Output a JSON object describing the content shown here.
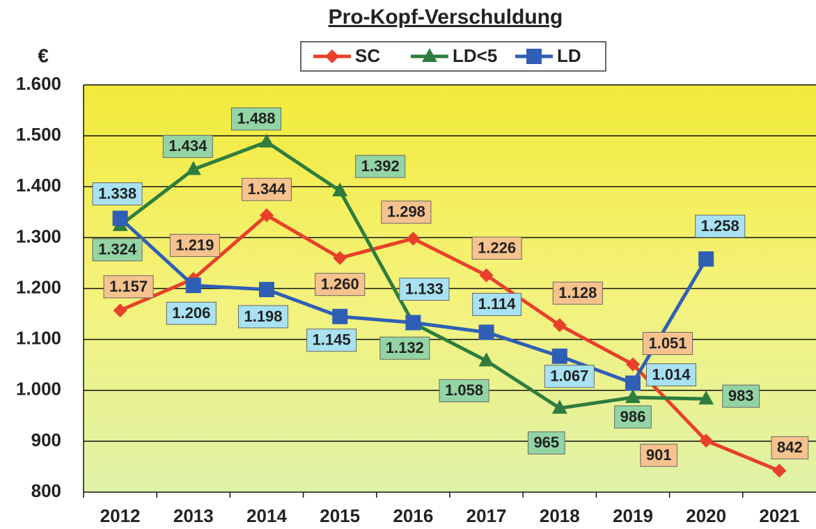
{
  "chart_data": {
    "type": "line",
    "title": "Pro-Kopf-Verschuldung",
    "y_label": "€",
    "categories": [
      "2012",
      "2013",
      "2014",
      "2015",
      "2016",
      "2017",
      "2018",
      "2019",
      "2020",
      "2021"
    ],
    "series": [
      {
        "name": "SC",
        "color": "#e8402a",
        "marker": "diamond",
        "label_color": "#f6c28e",
        "values": [
          1157,
          1219,
          1344,
          1260,
          1298,
          1226,
          1128,
          1051,
          901,
          842
        ],
        "value_labels": [
          "1.157",
          "1.219",
          "1.344",
          "1.260",
          "1.298",
          "1.226",
          "1.128",
          "1.051",
          "901",
          "842"
        ]
      },
      {
        "name": "LD<5",
        "color": "#2e7d3e",
        "marker": "triangle",
        "label_color": "#93d4a4",
        "values": [
          1324,
          1434,
          1488,
          1392,
          1132,
          1058,
          965,
          986,
          983,
          null
        ],
        "value_labels": [
          "1.324",
          "1.434",
          "1.488",
          "1.392",
          "1.132",
          "1.058",
          "965",
          "986",
          "983",
          null
        ]
      },
      {
        "name": "LD",
        "color": "#2f5fb5",
        "marker": "square",
        "label_color": "#a8e2f2",
        "values": [
          1338,
          1206,
          1198,
          1145,
          1133,
          1114,
          1067,
          1014,
          1258,
          null
        ],
        "value_labels": [
          "1.338",
          "1.206",
          "1.198",
          "1.145",
          "1.133",
          "1.114",
          "1.067",
          "1.014",
          "1.258",
          null
        ]
      }
    ],
    "ylim": [
      800,
      1600
    ],
    "yticks": [
      {
        "value": 800,
        "label": "800"
      },
      {
        "value": 900,
        "label": "900"
      },
      {
        "value": 1000,
        "label": "1.000"
      },
      {
        "value": 1100,
        "label": "1.100"
      },
      {
        "value": 1200,
        "label": "1.200"
      },
      {
        "value": 1300,
        "label": "1.300"
      },
      {
        "value": 1400,
        "label": "1.400"
      },
      {
        "value": 1500,
        "label": "1.500"
      },
      {
        "value": 1600,
        "label": "1.600"
      }
    ],
    "grid": true,
    "legend": "top"
  }
}
